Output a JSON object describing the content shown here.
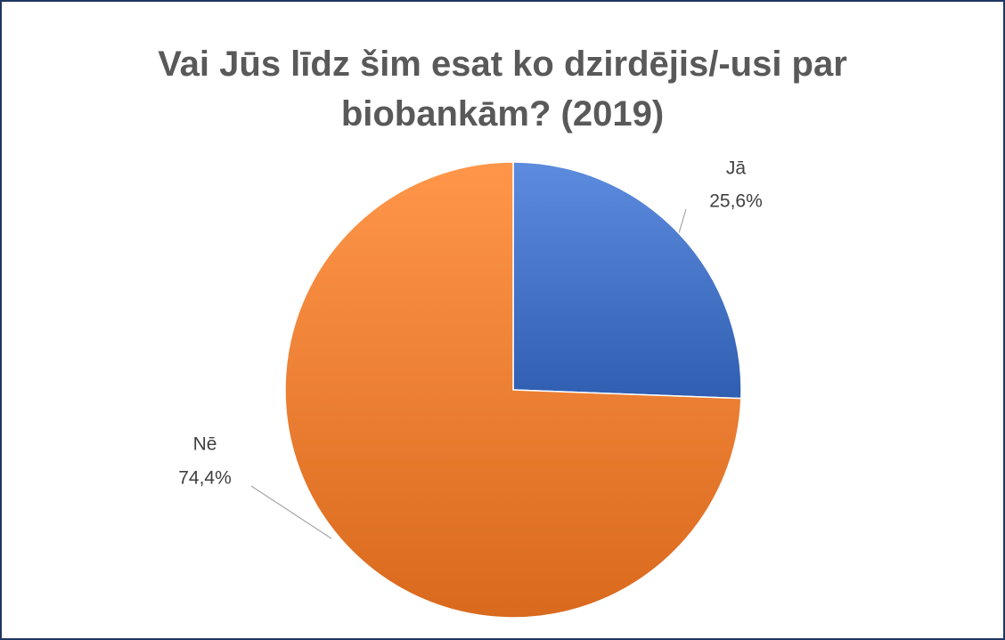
{
  "chart_data": {
    "type": "pie",
    "title": "Vai Jūs līdz šim esat ko dzirdējis/-usi par biobankām? (2019)",
    "categories": [
      "Jā",
      "Nē"
    ],
    "values": [
      25.6,
      74.4
    ],
    "value_labels": [
      "25,6%",
      "74,4%"
    ],
    "colors": [
      "#4472c4",
      "#ed7d31"
    ]
  }
}
